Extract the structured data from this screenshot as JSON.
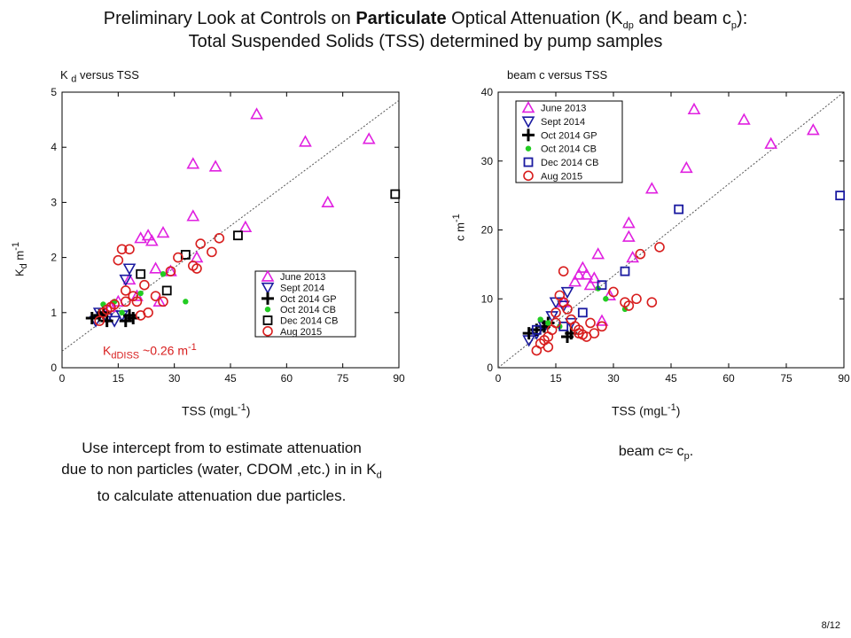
{
  "title": {
    "line1_pre": "Preliminary Look at Controls on ",
    "line1_bold": "Particulate",
    "line1_mid": " Optical Attenuation (K",
    "line1_sub1": "dp",
    "line1_and": " and beam c",
    "line1_sub2": "p",
    "line1_end": "):",
    "line2": "Total Suspended Solids (TSS) determined by pump samples"
  },
  "left_plot": {
    "label_pre": "K ",
    "label_sub": "d",
    "label_post": " versus TSS",
    "ylabel_main": "K",
    "ylabel_sub": "d",
    "ylabel_unit": " m",
    "ylabel_exp": "-1",
    "xlabel_main": "TSS (mgL",
    "xlabel_exp": "-1",
    "xlabel_end": ")",
    "annotation_main": "K",
    "annotation_sub": "dDISS",
    "annotation_val": " ~0.26 m",
    "annotation_exp": "-1"
  },
  "right_plot": {
    "label": "beam  c  versus TSS",
    "ylabel_main": "c  m",
    "ylabel_exp": "-1",
    "xlabel_main": "TSS (mgL",
    "xlabel_exp": "-1",
    "xlabel_end": ")"
  },
  "caption_left": {
    "line1": "Use intercept from to estimate attenuation",
    "line2_pre": "due to non particles (water, CDOM ,etc.) in in K",
    "line2_sub": "d",
    "line3": "to calculate attenuation due particles."
  },
  "caption_right": {
    "pre": "beam c≈  c",
    "sub": "p",
    "end": "."
  },
  "page_number": "8/12",
  "chart_data": [
    {
      "type": "scatter",
      "title": "K d versus TSS",
      "xlabel": "TSS (mgL-1)",
      "ylabel": "Kd m-1",
      "xlim": [
        0,
        90
      ],
      "ylim": [
        0,
        5
      ],
      "xticks": [
        0,
        15,
        30,
        45,
        60,
        75,
        90
      ],
      "yticks": [
        0,
        1,
        2,
        3,
        4,
        5
      ],
      "legend_position": "center-right",
      "fit_line": {
        "x": [
          0,
          90
        ],
        "y": [
          0.3,
          4.85
        ]
      },
      "series": [
        {
          "name": "June 2013",
          "marker": "triangle-up",
          "color": "#e020e0",
          "x": [
            13,
            15,
            18,
            20,
            21,
            23,
            24,
            25,
            26,
            27,
            29,
            35,
            35,
            36,
            41,
            49,
            52,
            65,
            71,
            82
          ],
          "y": [
            1.1,
            1.2,
            1.6,
            1.3,
            2.35,
            2.4,
            2.3,
            1.8,
            1.2,
            2.45,
            1.75,
            2.75,
            3.7,
            2.0,
            3.65,
            2.55,
            4.6,
            4.1,
            3.0,
            4.15
          ]
        },
        {
          "name": "Sept 2014",
          "marker": "triangle-down",
          "color": "#1a1aa0",
          "x": [
            9,
            10,
            12,
            14,
            16,
            17,
            18
          ],
          "y": [
            0.85,
            1.0,
            0.9,
            0.85,
            0.95,
            1.6,
            1.8
          ]
        },
        {
          "name": "Oct 2014 GP",
          "marker": "plus",
          "color": "#000000",
          "x": [
            8,
            10,
            11,
            12,
            17,
            18,
            19
          ],
          "y": [
            0.9,
            0.95,
            1.0,
            0.85,
            0.85,
            0.95,
            0.9
          ]
        },
        {
          "name": "Oct 2014 CB",
          "marker": "dot",
          "color": "#22cc22",
          "x": [
            11,
            14,
            16,
            21,
            27,
            33
          ],
          "y": [
            1.15,
            1.2,
            1.0,
            1.35,
            1.7,
            1.2
          ]
        },
        {
          "name": "Dec 2014 CB",
          "marker": "square",
          "color": "#000000",
          "x": [
            21,
            28,
            33,
            47,
            89
          ],
          "y": [
            1.7,
            1.4,
            2.05,
            2.4,
            3.15
          ]
        },
        {
          "name": "Aug 2015",
          "marker": "circle",
          "color": "#d81e1e",
          "x": [
            10,
            11,
            12,
            13,
            14,
            15,
            16,
            17,
            17,
            18,
            19,
            20,
            21,
            22,
            23,
            25,
            27,
            29,
            31,
            35,
            36,
            37,
            40,
            42
          ],
          "y": [
            0.85,
            1.0,
            1.05,
            1.1,
            1.15,
            1.95,
            2.15,
            1.2,
            1.4,
            2.15,
            1.3,
            1.2,
            0.95,
            1.5,
            1.0,
            1.3,
            1.2,
            1.75,
            2.0,
            1.85,
            1.8,
            2.25,
            2.1,
            2.35
          ]
        }
      ]
    },
    {
      "type": "scatter",
      "title": "beam c versus TSS",
      "xlabel": "TSS (mgL-1)",
      "ylabel": "c m-1",
      "xlim": [
        0,
        90
      ],
      "ylim": [
        0,
        40
      ],
      "xticks": [
        0,
        15,
        30,
        45,
        60,
        75,
        90
      ],
      "yticks": [
        0,
        10,
        20,
        30,
        40
      ],
      "legend_position": "top-left",
      "fit_line": {
        "x": [
          0,
          90
        ],
        "y": [
          0,
          40
        ]
      },
      "series": [
        {
          "name": "June 2013",
          "marker": "triangle-up",
          "color": "#e020e0",
          "x": [
            17,
            20,
            21,
            22,
            23,
            24,
            25,
            26,
            27,
            29,
            34,
            34,
            35,
            40,
            49,
            51,
            64,
            71,
            82
          ],
          "y": [
            9.5,
            12.5,
            13.5,
            14.5,
            13.5,
            12.0,
            13.0,
            16.5,
            6.8,
            10.5,
            21.0,
            19.0,
            16.0,
            26.0,
            29.0,
            37.5,
            36.0,
            32.5,
            34.5
          ]
        },
        {
          "name": "Sept 2014",
          "marker": "triangle-down",
          "color": "#1a1aa0",
          "x": [
            8,
            10,
            12,
            14,
            15,
            17,
            18,
            19
          ],
          "y": [
            4.0,
            5.0,
            6.0,
            7.5,
            9.5,
            9.0,
            11.0,
            6.5
          ]
        },
        {
          "name": "Oct 2014 GP",
          "marker": "plus",
          "color": "#000000",
          "x": [
            8,
            10,
            12,
            13,
            18,
            19
          ],
          "y": [
            5.0,
            5.5,
            6.0,
            6.5,
            4.5,
            5.0
          ]
        },
        {
          "name": "Oct 2014 CB",
          "marker": "dot",
          "color": "#22cc22",
          "x": [
            11,
            13,
            16,
            26,
            28,
            33
          ],
          "y": [
            7.0,
            6.5,
            6.0,
            11.5,
            10.0,
            8.5
          ]
        },
        {
          "name": "Dec 2014 CB",
          "marker": "square",
          "color": "#1a1aa0",
          "x": [
            10,
            17,
            22,
            27,
            33,
            47,
            89
          ],
          "y": [
            5.5,
            6.0,
            8.0,
            12.0,
            14.0,
            23.0,
            25.0
          ]
        },
        {
          "name": "Aug 2015",
          "marker": "circle",
          "color": "#d81e1e",
          "x": [
            10,
            11,
            12,
            13,
            13,
            14,
            15,
            15,
            16,
            17,
            17,
            18,
            19,
            20,
            21,
            21,
            22,
            23,
            24,
            25,
            27,
            30,
            33,
            34,
            36,
            37,
            40,
            42
          ],
          "y": [
            2.5,
            3.5,
            4.0,
            4.5,
            3.0,
            5.5,
            6.5,
            8.0,
            10.5,
            14.0,
            9.5,
            8.5,
            7.0,
            6.0,
            5.0,
            5.5,
            4.8,
            4.5,
            6.5,
            5.0,
            6.0,
            11.0,
            9.5,
            9.0,
            10.0,
            16.5,
            9.5,
            17.5
          ]
        }
      ]
    }
  ]
}
